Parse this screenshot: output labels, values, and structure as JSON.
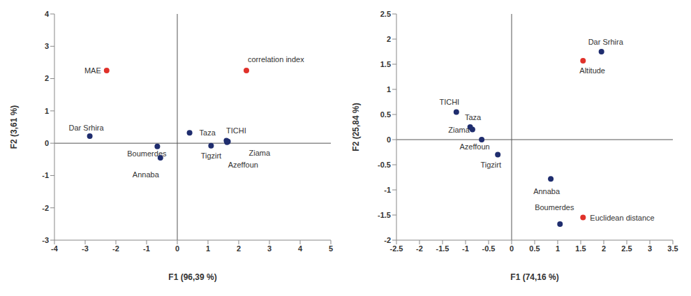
{
  "chart_data": [
    {
      "type": "scatter",
      "x_label": "F1 (96,39 %)",
      "y_label": "F2 (3,61 %)",
      "xlim": [
        -4,
        5
      ],
      "xticks": [
        -4,
        -3,
        -2,
        -1,
        0,
        1,
        2,
        3,
        4,
        5
      ],
      "ylim": [
        -3,
        4
      ],
      "yticks": [
        -3,
        -2,
        -1,
        0,
        1,
        2,
        3,
        4
      ],
      "series": [
        {
          "color": "#1f2d6e",
          "points": [
            {
              "label": "Dar Srhira",
              "x": -2.85,
              "y": 0.22
            },
            {
              "label": "Boumerdes",
              "x": -0.65,
              "y": -0.1
            },
            {
              "label": "Annaba",
              "x": -0.55,
              "y": -0.45
            },
            {
              "label": "Taza",
              "x": 0.4,
              "y": 0.32
            },
            {
              "label": "Tigzirt",
              "x": 1.1,
              "y": -0.08
            },
            {
              "label": "TICHI",
              "x": 1.6,
              "y": 0.08
            },
            {
              "label": "Ziama",
              "x": 1.65,
              "y": 0.05
            },
            {
              "label": "Azeffoun",
              "x": 1.62,
              "y": 0.03
            }
          ]
        },
        {
          "color": "#e0312a",
          "points": [
            {
              "label": "MAE",
              "x": -2.3,
              "y": 2.25
            },
            {
              "label": "correlation index",
              "x": 2.25,
              "y": 2.25
            }
          ]
        }
      ]
    },
    {
      "type": "scatter",
      "x_label": "F1 (74,16 %)",
      "y_label": "F2 (25,84 %)",
      "xlim": [
        -2.5,
        3.5
      ],
      "xticks": [
        -2.5,
        -2,
        -1.5,
        -1,
        -0.5,
        0,
        0.5,
        1,
        1.5,
        2,
        2.5,
        3,
        3.5
      ],
      "ylim": [
        -2,
        2.5
      ],
      "yticks": [
        -2,
        -1.5,
        -1,
        -0.5,
        0,
        0.5,
        1,
        1.5,
        2,
        2.5
      ],
      "series": [
        {
          "color": "#1f2d6e",
          "points": [
            {
              "label": "Dar Srhira",
              "x": 1.95,
              "y": 1.75
            },
            {
              "label": "TICHI",
              "x": -1.2,
              "y": 0.55
            },
            {
              "label": "Taza",
              "x": -0.9,
              "y": 0.25
            },
            {
              "label": "Ziama",
              "x": -0.85,
              "y": 0.2
            },
            {
              "label": "Azeffoun",
              "x": -0.65,
              "y": 0.0
            },
            {
              "label": "Tigzirt",
              "x": -0.3,
              "y": -0.3
            },
            {
              "label": "Annaba",
              "x": 0.85,
              "y": -0.78
            },
            {
              "label": "Boumerdes",
              "x": 1.05,
              "y": -1.68
            }
          ]
        },
        {
          "color": "#e0312a",
          "points": [
            {
              "label": "Altitude",
              "x": 1.55,
              "y": 1.57
            },
            {
              "label": "Euclidean distance",
              "x": 1.55,
              "y": -1.55
            }
          ]
        }
      ]
    }
  ]
}
